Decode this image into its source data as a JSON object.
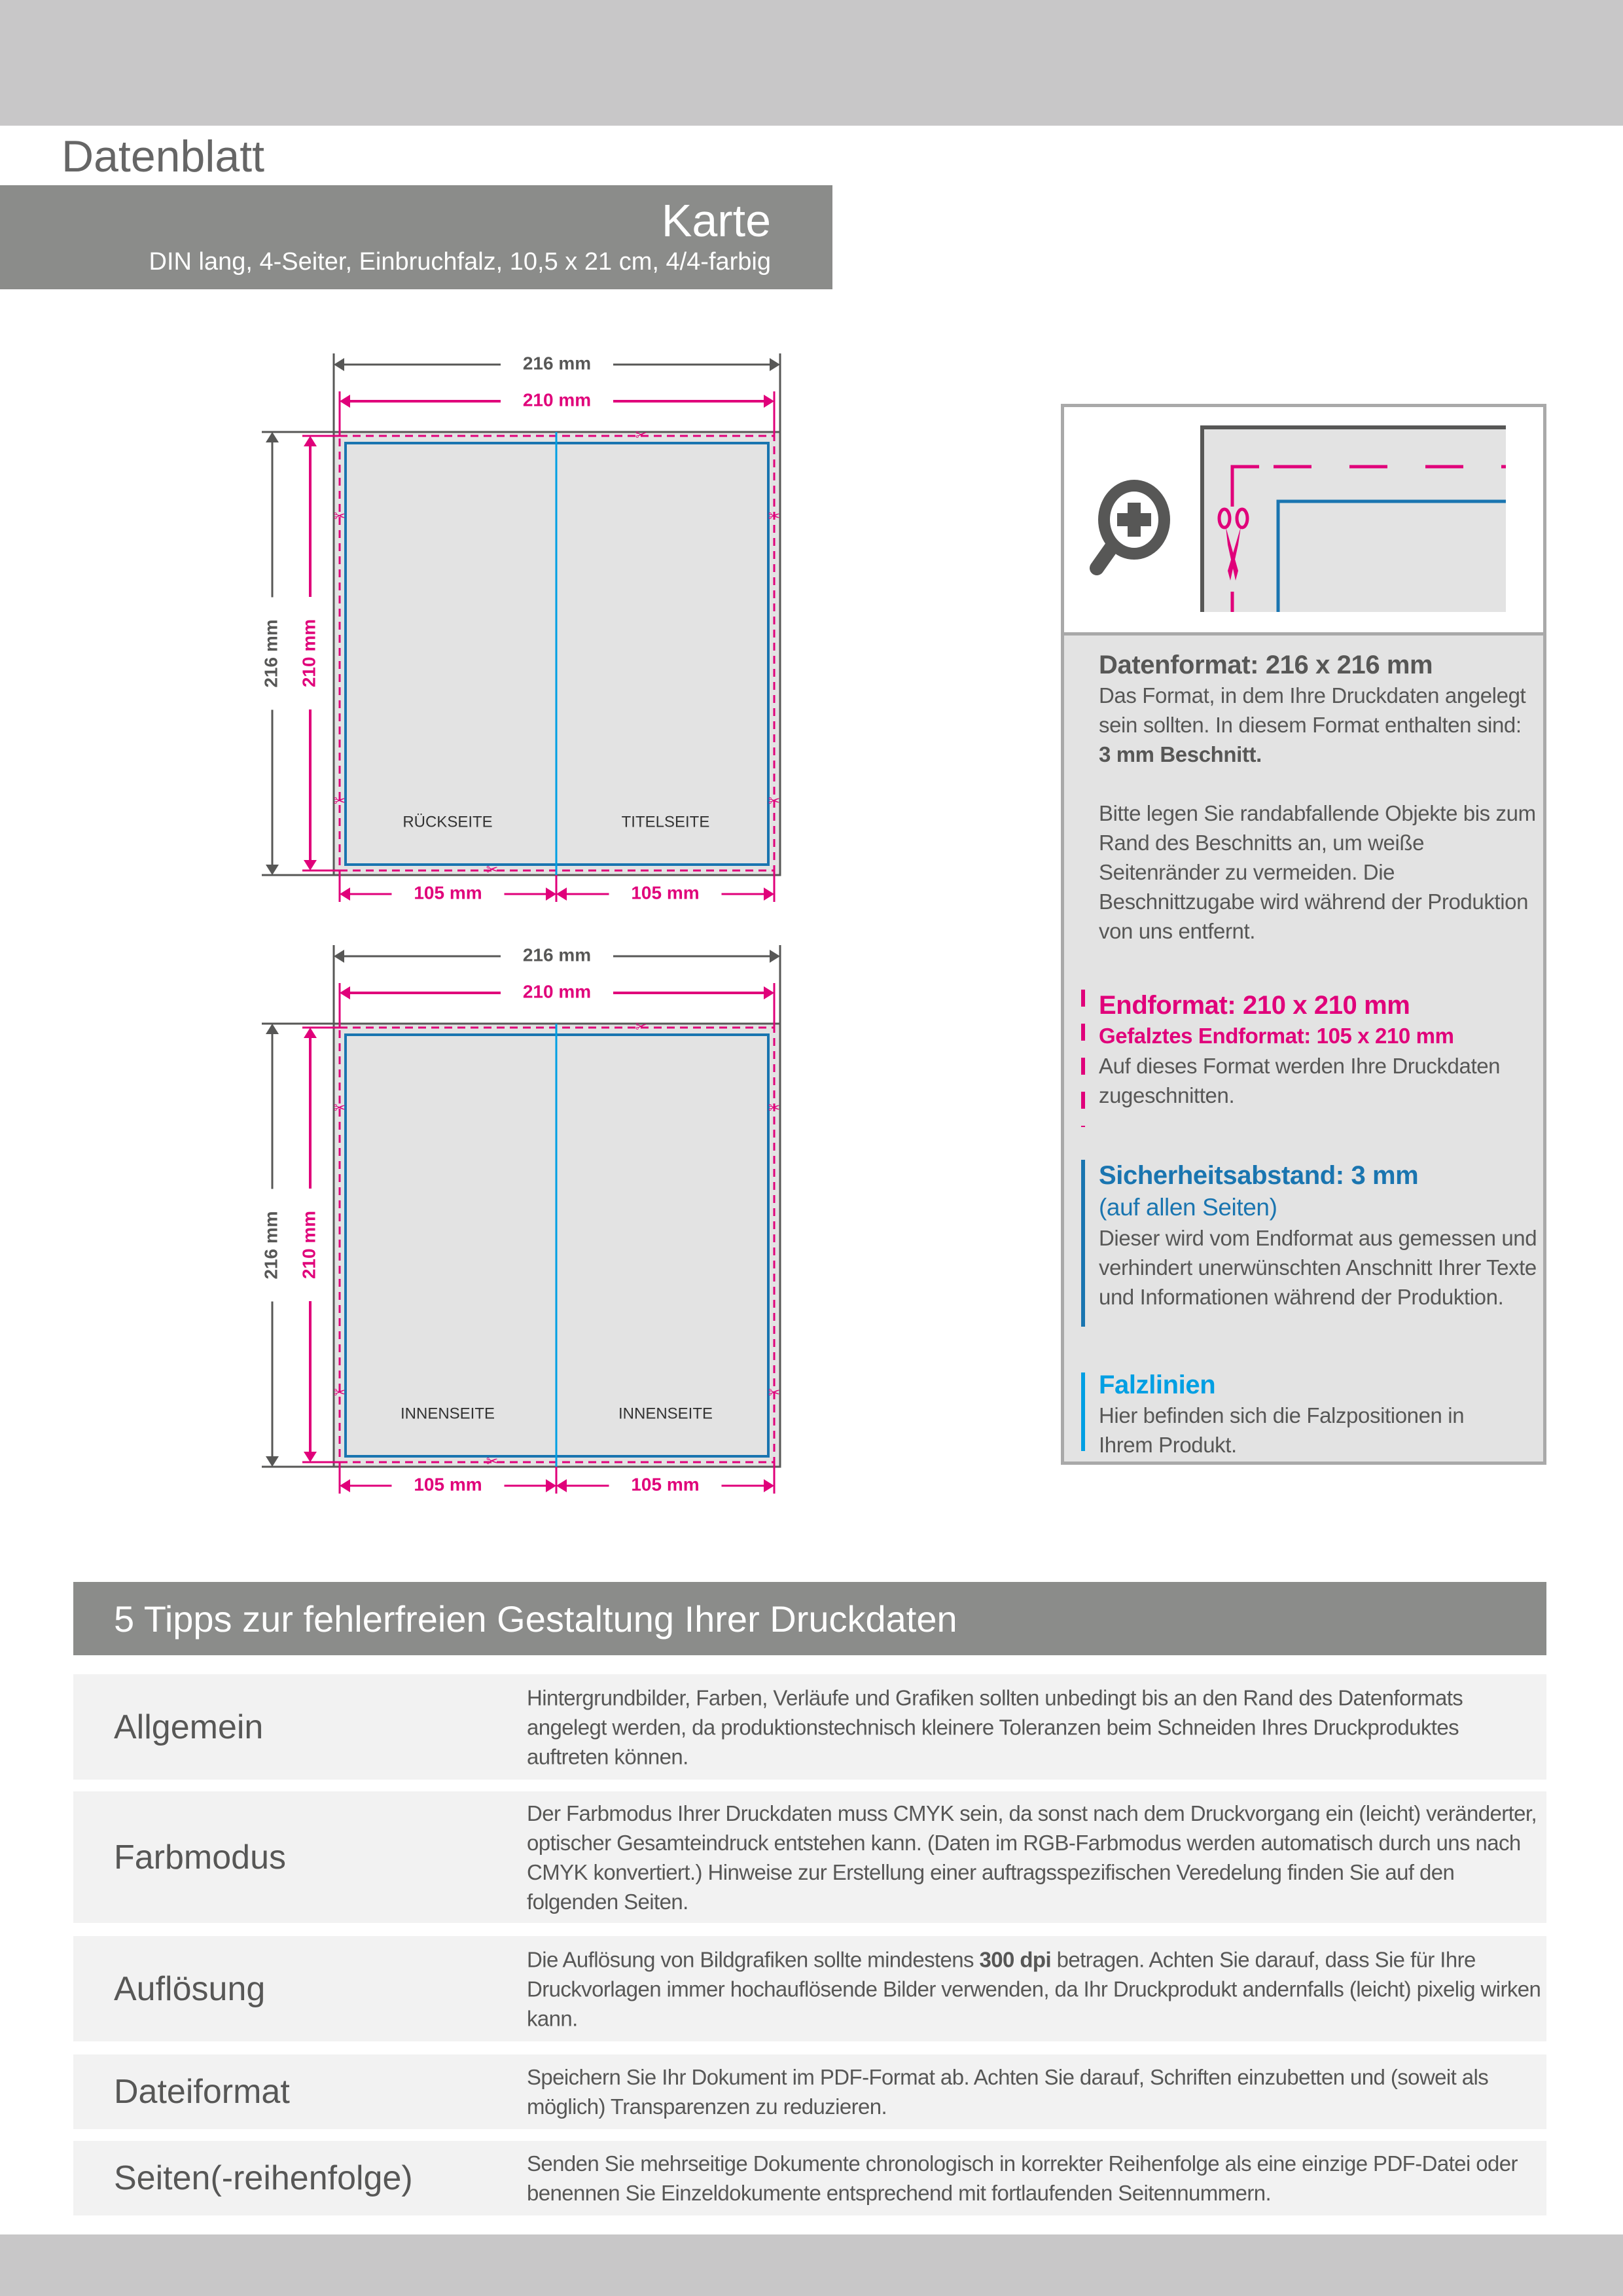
{
  "header": {
    "sheet_label": "Datenblatt",
    "product_title": "Karte",
    "product_subtitle": "DIN lang, 4-Seiter, Einbruchfalz, 10,5 x 21 cm, 4/4-farbig"
  },
  "colors": {
    "magenta": "#e0007a",
    "blue": "#1a75b0",
    "cyan": "#009fe3",
    "dark_grey": "#575756",
    "band_grey": "#8b8c8a"
  },
  "diagrams": [
    {
      "outer_width": "216 mm",
      "trim_width": "210 mm",
      "outer_height": "216 mm",
      "trim_height": "210 mm",
      "panel_left_width": "105 mm",
      "panel_right_width": "105 mm",
      "left_panel": "RÜCKSEITE",
      "right_panel": "TITELSEITE"
    },
    {
      "outer_width": "216 mm",
      "trim_width": "210 mm",
      "outer_height": "216 mm",
      "trim_height": "210 mm",
      "panel_left_width": "105 mm",
      "panel_right_width": "105 mm",
      "left_panel": "INNENSEITE",
      "right_panel": "INNENSEITE"
    }
  ],
  "legend": {
    "icons": [
      "zoom-in-icon",
      "scissors-icon"
    ],
    "datenformat": {
      "title": "Datenformat: 216 x 216 mm",
      "text1": "Das Format, in dem Ihre Druckdaten angelegt sein sollten. In diesem Format enthalten sind: ",
      "text1_bold": "3 mm Beschnitt.",
      "text2": "Bitte legen Sie randabfallende Objekte bis zum Rand des Beschnitts an, um weiße Seitenränder zu vermeiden. Die Beschnittzugabe wird während der Produktion von uns entfernt."
    },
    "endformat": {
      "title": "Endformat: 210 x 210 mm",
      "subtitle": "Gefalztes Endformat: 105 x 210 mm",
      "text": "Auf dieses Format werden Ihre Druckdaten zugeschnitten."
    },
    "sicherheit": {
      "title": "Sicherheitsabstand: 3 mm",
      "subtitle": "(auf allen Seiten)",
      "text": "Dieser wird vom Endformat aus gemessen und verhindert unerwünschten Anschnitt Ihrer Texte und Informationen während der Produktion."
    },
    "falz": {
      "title": "Falzlinien",
      "text": "Hier befinden sich die Falzpositionen in Ihrem Produkt."
    }
  },
  "tips": {
    "heading": "5 Tipps zur fehlerfreien Gestaltung Ihrer Druckdaten",
    "rows": [
      {
        "label": "Allgemein",
        "text": "Hintergrundbilder, Farben, Verläufe und Grafiken sollten unbedingt bis an den Rand des Datenformats angelegt werden, da produktionstechnisch kleinere Toleranzen beim Schneiden Ihres Druckproduktes auftreten können."
      },
      {
        "label": "Farbmodus",
        "text": "Der Farbmodus Ihrer Druckdaten muss CMYK sein, da sonst nach dem Druckvorgang ein (leicht) veränderter, optischer Gesamteindruck entstehen kann. (Daten im RGB-Farbmodus werden automatisch durch uns nach CMYK konvertiert.) Hinweise zur Erstellung einer auftragsspezifischen Veredelung finden Sie  auf den folgenden Seiten."
      },
      {
        "label": "Auflösung",
        "text_before": "Die Auflösung von Bildgrafiken sollte mindestens ",
        "text_bold": "300 dpi",
        "text_after": " betragen. Achten Sie darauf, dass Sie für Ihre Druckvorlagen immer hochauflösende Bilder verwenden, da Ihr Druckprodukt andernfalls (leicht) pixelig wirken kann."
      },
      {
        "label": "Dateiformat",
        "text": "Speichern Sie Ihr Dokument im PDF-Format ab. Achten Sie darauf, Schriften einzubetten und (soweit als möglich) Transparenzen zu reduzieren."
      },
      {
        "label": "Seiten(-reihenfolge)",
        "text": "Senden Sie mehrseitige Dokumente chronologisch in korrekter Reihenfolge als eine einzige PDF-Datei oder benennen Sie Einzeldokumente entsprechend mit fortlaufenden Seitennummern."
      }
    ]
  }
}
